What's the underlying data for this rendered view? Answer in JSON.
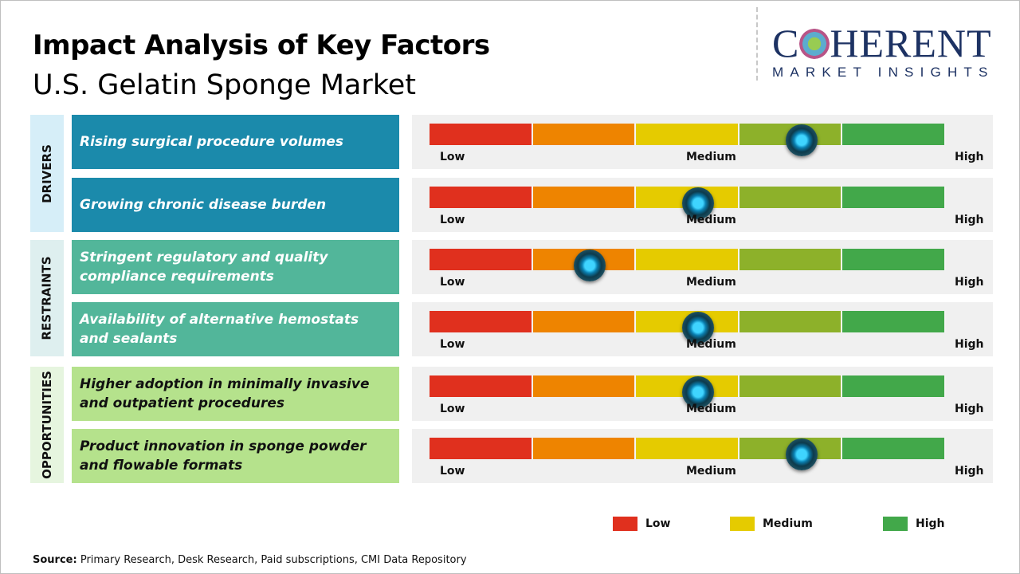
{
  "title": "Impact Analysis of Key Factors",
  "subtitle": "U.S. Gelatin Sponge Market",
  "logo": {
    "line1": "COHERENT",
    "line2": "MARKET INSIGHTS"
  },
  "scale_labels": {
    "low": "Low",
    "medium": "Medium",
    "high": "High"
  },
  "segment_colors": [
    "#e0301e",
    "#ee8400",
    "#e5cb00",
    "#8db12a",
    "#42a84a"
  ],
  "categories": [
    {
      "label": "DRIVERS",
      "bg": "#d6eef8",
      "row_bg": "#1b8aab",
      "text_color": "#ffffff",
      "factors": [
        {
          "text": "Rising surgical procedure volumes",
          "impact": 0.72
        },
        {
          "text": "Growing chronic disease burden",
          "impact": 0.52
        }
      ]
    },
    {
      "label": "RESTRAINTS",
      "bg": "#deefef",
      "row_bg": "#52b69a",
      "text_color": "#ffffff",
      "factors": [
        {
          "text": "Stringent regulatory and quality compliance requirements",
          "impact": 0.31
        },
        {
          "text": "Availability of alternative hemostats and sealants",
          "impact": 0.52
        }
      ]
    },
    {
      "label": "OPPORTUNITIES",
      "bg": "#e6f5df",
      "row_bg": "#b5e28c",
      "text_color": "#111111",
      "factors": [
        {
          "text": "Higher adoption in minimally invasive and outpatient procedures",
          "impact": 0.52
        },
        {
          "text": "Product innovation in sponge powder and flowable formats",
          "impact": 0.72
        }
      ]
    }
  ],
  "legend": [
    {
      "label": "Low",
      "color": "#e0301e"
    },
    {
      "label": "Medium",
      "color": "#e5cb00"
    },
    {
      "label": "High",
      "color": "#42a84a"
    }
  ],
  "source": {
    "label": "Source:",
    "text": "Primary Research, Desk Research, Paid subscriptions, CMI Data Repository"
  }
}
